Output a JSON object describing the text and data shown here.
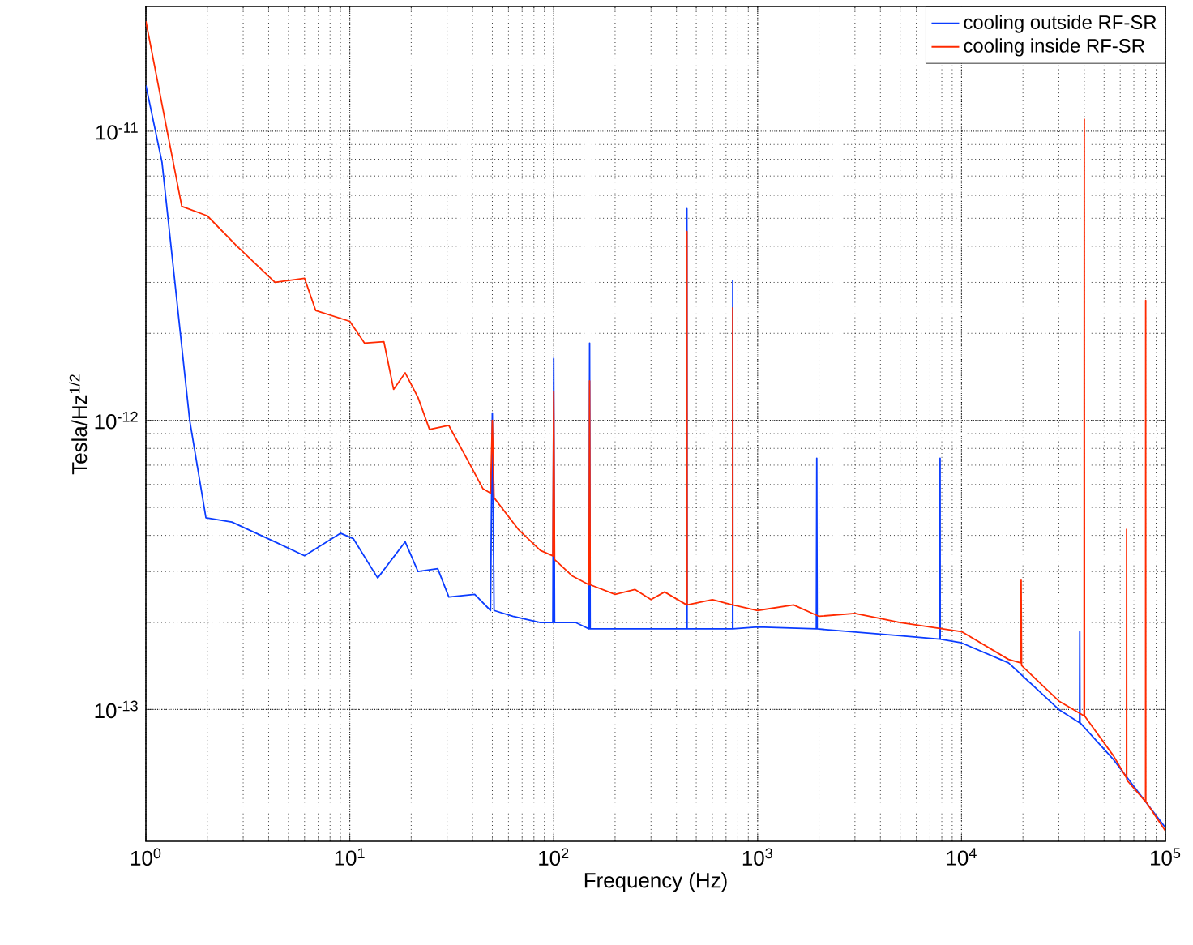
{
  "chart_data": {
    "type": "line",
    "xlabel": "Frequency (Hz)",
    "ylabel": "Tesla/Hz$^{1/2}$",
    "log": "xy",
    "grid": true,
    "legend": "top right",
    "xlim": [
      1,
      100000
    ],
    "ylim": [
      3.5e-14,
      2.7e-11
    ],
    "xticks": [
      {
        "value": 1,
        "label": "10$^{0}$"
      },
      {
        "value": 10,
        "label": "10$^{1}$"
      },
      {
        "value": 100,
        "label": "10$^{2}$"
      },
      {
        "value": 1000,
        "label": "10$^{3}$"
      },
      {
        "value": 10000,
        "label": "10$^{4}$"
      },
      {
        "value": 100000,
        "label": "10$^{5}$"
      }
    ],
    "yticks": [
      {
        "value": 1e-13,
        "label": "10$^{-13}$"
      },
      {
        "value": 1e-12,
        "label": "10$^{-12}$"
      },
      {
        "value": 1e-11,
        "label": "10$^{-11}$"
      }
    ],
    "series": [
      {
        "name": "cooling outside RF-SR",
        "color": "#0a3cff",
        "x": [
          1,
          1.2,
          1.64,
          1.97,
          2.64,
          4.3,
          6,
          9,
          10.4,
          13.7,
          18.7,
          21.6,
          27,
          30.6,
          41,
          49,
          50,
          51,
          63,
          86,
          99,
          100,
          101,
          128,
          149,
          150,
          151,
          300,
          449,
          450,
          451,
          754,
          755,
          756,
          1000,
          1940,
          1950,
          1960,
          5000,
          7840,
          7850,
          7860,
          10000,
          17000,
          30000,
          37900,
          38000,
          38100,
          55700,
          100000
        ],
        "values": [
          1.44e-11,
          7.8e-12,
          1e-12,
          4.6e-13,
          4.45e-13,
          3.8e-13,
          3.4e-13,
          4.07e-13,
          3.9e-13,
          2.85e-13,
          3.8e-13,
          3e-13,
          3.07e-13,
          2.45e-13,
          2.5e-13,
          2.2e-13,
          1.06e-12,
          2.2e-13,
          2.1e-13,
          2e-13,
          2e-13,
          1.64e-12,
          2e-13,
          2e-13,
          1.9e-13,
          1.85e-12,
          1.9e-13,
          1.9e-13,
          1.9e-13,
          5.4e-12,
          1.9e-13,
          1.9e-13,
          3.05e-12,
          1.9e-13,
          1.93e-13,
          1.9e-13,
          7.4e-13,
          1.9e-13,
          1.8e-13,
          1.75e-13,
          7.4e-13,
          1.75e-13,
          1.7e-13,
          1.45e-13,
          1e-13,
          9e-14,
          1.86e-13,
          9e-14,
          6.7e-14,
          3.9e-14
        ]
      },
      {
        "name": "cooling inside RF-SR",
        "color": "#ff2a00",
        "x": [
          1,
          1.5,
          2,
          2.8,
          4.3,
          6,
          6.8,
          10,
          11.8,
          14.7,
          16.4,
          18.7,
          21.6,
          24.6,
          30.6,
          39,
          45,
          49,
          50,
          51,
          67,
          86,
          99,
          100,
          101,
          123,
          149,
          150,
          151,
          200,
          250,
          300,
          350,
          449,
          450,
          451,
          600,
          754,
          755,
          756,
          1000,
          1500,
          2000,
          3000,
          5000,
          10000,
          17000,
          19500,
          19600,
          19700,
          30000,
          39900,
          40000,
          40100,
          55700,
          64400,
          64500,
          64600,
          79900,
          80000,
          80100,
          100000
        ],
        "values": [
          2.4e-11,
          5.5e-12,
          5.1e-12,
          4e-12,
          3e-12,
          3.1e-12,
          2.4e-12,
          2.2e-12,
          1.85e-12,
          1.87e-12,
          1.28e-12,
          1.46e-12,
          1.2e-12,
          9.3e-13,
          9.6e-13,
          7e-13,
          5.8e-13,
          5.6e-13,
          1e-12,
          5.4e-13,
          4.2e-13,
          3.55e-13,
          3.4e-13,
          1.26e-12,
          3.3e-13,
          2.9e-13,
          2.7e-13,
          1.37e-12,
          2.7e-13,
          2.5e-13,
          2.6e-13,
          2.4e-13,
          2.55e-13,
          2.3e-13,
          4.5e-12,
          2.3e-13,
          2.4e-13,
          2.3e-13,
          2.45e-12,
          2.3e-13,
          2.2e-13,
          2.3e-13,
          2.1e-13,
          2.15e-13,
          2e-13,
          1.86e-13,
          1.49e-13,
          1.45e-13,
          2.8e-13,
          1.42e-13,
          1.07e-13,
          9.5e-14,
          1.1e-11,
          9.5e-14,
          6.9e-14,
          5.8e-14,
          4.2e-13,
          5.7e-14,
          4.8e-14,
          2.6e-12,
          4.8e-14,
          3.8e-14
        ]
      }
    ]
  }
}
